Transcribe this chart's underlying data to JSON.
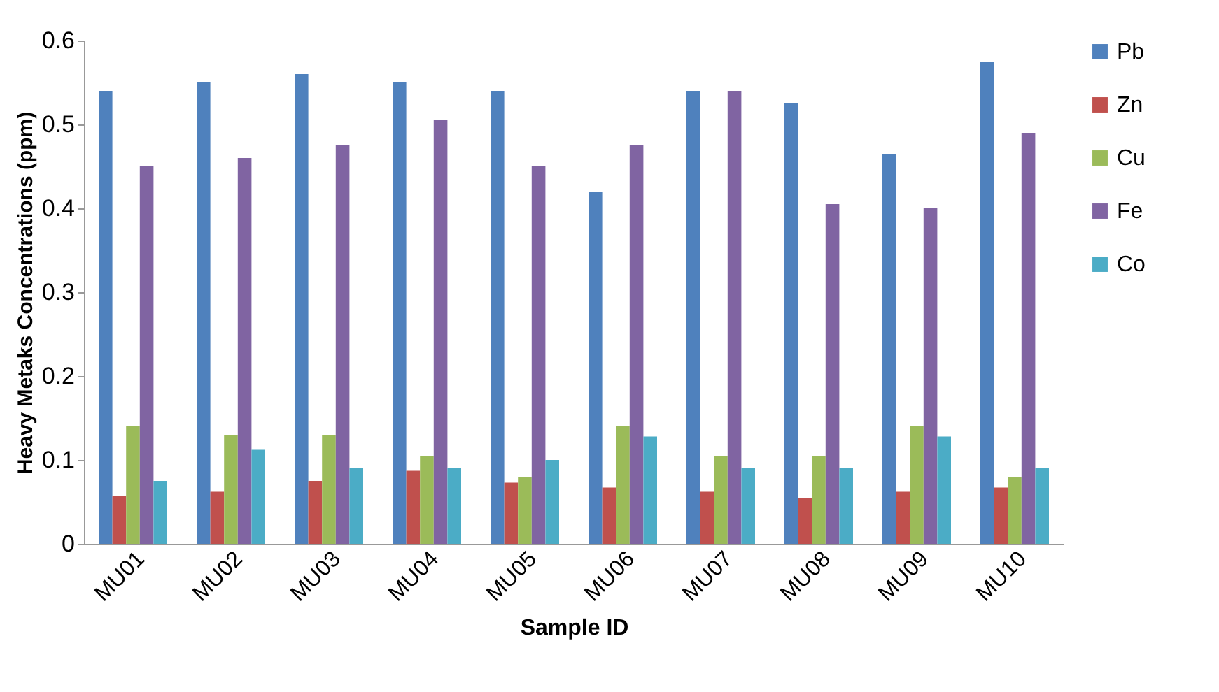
{
  "chart_data": {
    "type": "bar",
    "xlabel": "Sample ID",
    "ylabel": "Heavy Metaks Concentrations (ppm)",
    "categories": [
      "MU01",
      "MU02",
      "MU03",
      "MU04",
      "MU05",
      "MU06",
      "MU07",
      "MU08",
      "MU09",
      "MU10"
    ],
    "series": [
      {
        "name": "Pb",
        "color": "#4f81bd",
        "values": [
          0.54,
          0.55,
          0.56,
          0.55,
          0.54,
          0.42,
          0.54,
          0.525,
          0.465,
          0.575
        ]
      },
      {
        "name": "Zn",
        "color": "#c0504d",
        "values": [
          0.057,
          0.062,
          0.075,
          0.087,
          0.073,
          0.067,
          0.062,
          0.055,
          0.062,
          0.067
        ]
      },
      {
        "name": "Cu",
        "color": "#9bbb59",
        "values": [
          0.14,
          0.13,
          0.13,
          0.105,
          0.08,
          0.14,
          0.105,
          0.105,
          0.14,
          0.08
        ]
      },
      {
        "name": "Fe",
        "color": "#8064a2",
        "values": [
          0.45,
          0.46,
          0.475,
          0.505,
          0.45,
          0.475,
          0.54,
          0.405,
          0.4,
          0.49
        ]
      },
      {
        "name": "Co",
        "color": "#4bacc6",
        "values": [
          0.075,
          0.112,
          0.09,
          0.09,
          0.1,
          0.128,
          0.09,
          0.09,
          0.128,
          0.09
        ]
      }
    ],
    "ylim": [
      0,
      0.6
    ],
    "yticks": [
      0,
      0.1,
      0.2,
      0.3,
      0.4,
      0.5,
      0.6
    ],
    "grid": false,
    "legend": "right"
  }
}
